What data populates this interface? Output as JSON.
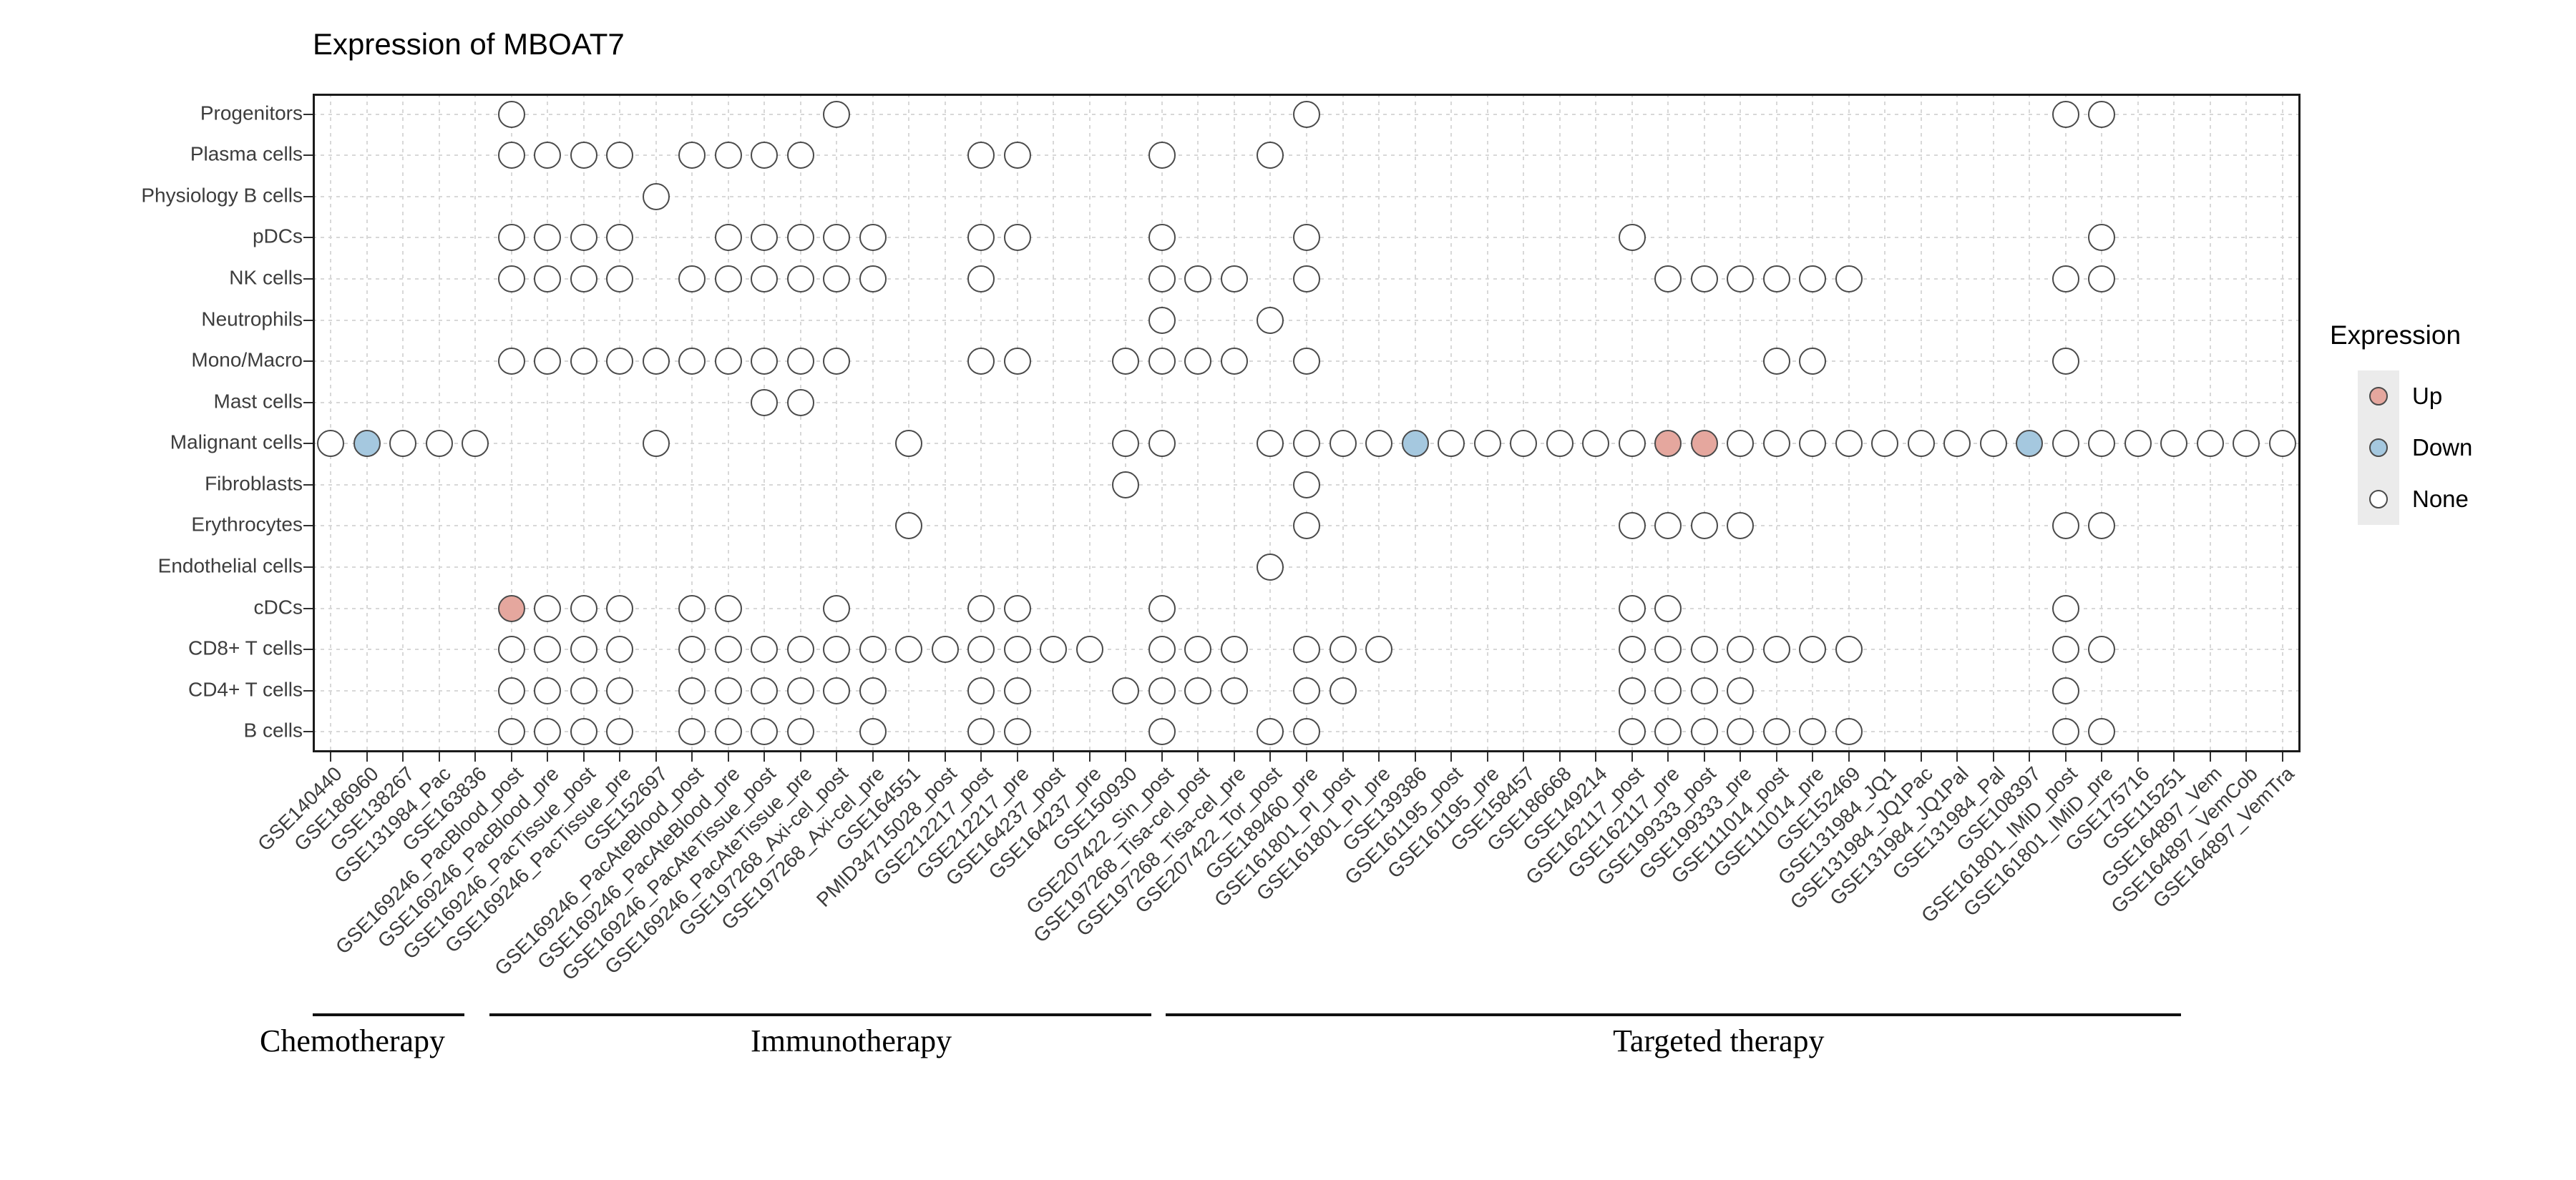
{
  "title": "Expression of MBOAT7",
  "legend": {
    "title": "Expression",
    "items": [
      {
        "label": "Up",
        "value": "up"
      },
      {
        "label": "Down",
        "value": "down"
      },
      {
        "label": "None",
        "value": "none"
      }
    ]
  },
  "colors": {
    "up": "#e5a79e",
    "down": "#a5c8df",
    "none": "#ffffff",
    "dot_stroke": "#4a4a4a",
    "grid": "#d8d8d8",
    "panel_border": "#1a1a1a",
    "axis_text": "#3d3d3d",
    "legend_key_bg": "#ebebeb"
  },
  "chart_data": {
    "type": "dot-matrix",
    "title": "Expression of MBOAT7",
    "value_domain": [
      "Up",
      "Down",
      "None"
    ],
    "legend_position": "right",
    "grid": true,
    "columns": [
      "GSE140440",
      "GSE186960",
      "GSE138267",
      "GSE131984_Pac",
      "GSE163836",
      "GSE169246_PacBlood_post",
      "GSE169246_PacBlood_pre",
      "GSE169246_PacTissue_post",
      "GSE169246_PacTissue_pre",
      "GSE152697",
      "GSE169246_PacAteBlood_post",
      "GSE169246_PacAteBlood_pre",
      "GSE169246_PacAteTissue_post",
      "GSE169246_PacAteTissue_pre",
      "GSE197268_Axi-cel_post",
      "GSE197268_Axi-cel_pre",
      "GSE164551",
      "PMID34715028_post",
      "GSE212217_post",
      "GSE212217_pre",
      "GSE164237_post",
      "GSE164237_pre",
      "GSE150930",
      "GSE207422_Sin_post",
      "GSE197268_Tisa-cel_post",
      "GSE197268_Tisa-cel_pre",
      "GSE207422_Tor_post",
      "GSE189460_pre",
      "GSE161801_PI_post",
      "GSE161801_PI_pre",
      "GSE139386",
      "GSE161195_post",
      "GSE161195_pre",
      "GSE158457",
      "GSE186668",
      "GSE149214",
      "GSE162117_post",
      "GSE162117_pre",
      "GSE199333_post",
      "GSE199333_pre",
      "GSE111014_post",
      "GSE111014_pre",
      "GSE152469",
      "GSE131984_JQ1",
      "GSE131984_JQ1Pac",
      "GSE131984_JQ1Pal",
      "GSE131984_Pal",
      "GSE108397",
      "GSE161801_IMiD_post",
      "GSE161801_IMiD_pre",
      "GSE175716",
      "GSE115251",
      "GSE164897_Vem",
      "GSE164897_VemCob",
      "GSE164897_VemTra"
    ],
    "rows": [
      {
        "label": "Progenitors",
        "none": [
          5,
          14,
          27,
          48,
          49
        ],
        "up": [],
        "down": []
      },
      {
        "label": "Plasma cells",
        "none": [
          5,
          6,
          7,
          8,
          10,
          11,
          12,
          13,
          18,
          19,
          23,
          26
        ],
        "up": [],
        "down": []
      },
      {
        "label": "Physiology B cells",
        "none": [
          9
        ],
        "up": [],
        "down": []
      },
      {
        "label": "pDCs",
        "none": [
          5,
          6,
          7,
          8,
          11,
          12,
          13,
          14,
          15,
          18,
          19,
          23,
          27,
          36,
          49
        ],
        "up": [],
        "down": []
      },
      {
        "label": "NK cells",
        "none": [
          5,
          6,
          7,
          8,
          10,
          11,
          12,
          13,
          14,
          15,
          18,
          23,
          24,
          25,
          27,
          37,
          38,
          39,
          40,
          41,
          42,
          48,
          49
        ],
        "up": [],
        "down": []
      },
      {
        "label": "Neutrophils",
        "none": [
          23,
          26
        ],
        "up": [],
        "down": []
      },
      {
        "label": "Mono/Macro",
        "none": [
          5,
          6,
          7,
          8,
          9,
          10,
          11,
          12,
          13,
          14,
          18,
          19,
          22,
          23,
          24,
          25,
          27,
          40,
          41,
          48
        ],
        "up": [],
        "down": []
      },
      {
        "label": "Mast cells",
        "none": [
          12,
          13
        ],
        "up": [],
        "down": []
      },
      {
        "label": "Malignant cells",
        "none": [
          0,
          2,
          3,
          4,
          9,
          16,
          22,
          23,
          26,
          27,
          28,
          29,
          31,
          32,
          33,
          34,
          35,
          36,
          39,
          40,
          41,
          42,
          43,
          44,
          45,
          46,
          48,
          49,
          50,
          51,
          52,
          53,
          54
        ],
        "up": [
          37,
          38
        ],
        "down": [
          1,
          30,
          47
        ]
      },
      {
        "label": "Fibroblasts",
        "none": [
          22,
          27
        ],
        "up": [],
        "down": []
      },
      {
        "label": "Erythrocytes",
        "none": [
          16,
          27,
          36,
          37,
          38,
          39,
          48,
          49
        ],
        "up": [],
        "down": []
      },
      {
        "label": "Endothelial cells",
        "none": [
          26
        ],
        "up": [],
        "down": []
      },
      {
        "label": "cDCs",
        "none": [
          6,
          7,
          8,
          10,
          11,
          14,
          18,
          19,
          23,
          36,
          37,
          48
        ],
        "up": [
          5
        ],
        "down": []
      },
      {
        "label": "CD8+ T cells",
        "none": [
          5,
          6,
          7,
          8,
          10,
          11,
          12,
          13,
          14,
          15,
          16,
          17,
          18,
          19,
          20,
          21,
          23,
          24,
          25,
          27,
          28,
          29,
          36,
          37,
          38,
          39,
          40,
          41,
          42,
          48,
          49
        ],
        "up": [],
        "down": []
      },
      {
        "label": "CD4+ T cells",
        "none": [
          5,
          6,
          7,
          8,
          10,
          11,
          12,
          13,
          14,
          15,
          18,
          19,
          22,
          23,
          24,
          25,
          27,
          28,
          36,
          37,
          38,
          39,
          48
        ],
        "up": [],
        "down": []
      },
      {
        "label": "B cells",
        "none": [
          5,
          6,
          7,
          8,
          10,
          11,
          12,
          13,
          15,
          18,
          19,
          23,
          26,
          27,
          36,
          37,
          38,
          39,
          40,
          41,
          42,
          48,
          49
        ],
        "up": [],
        "down": []
      }
    ],
    "groups": [
      {
        "label": "Chemotherapy",
        "line_from": -0.5,
        "line_to": 3.7,
        "label_at": 0.6
      },
      {
        "label": "Immunotherapy",
        "line_from": 4.4,
        "line_to": 22.7,
        "label_at": 14.4
      },
      {
        "label": "Targeted therapy",
        "line_from": 23.1,
        "line_to": 51.2,
        "label_at": 38.4
      }
    ]
  }
}
